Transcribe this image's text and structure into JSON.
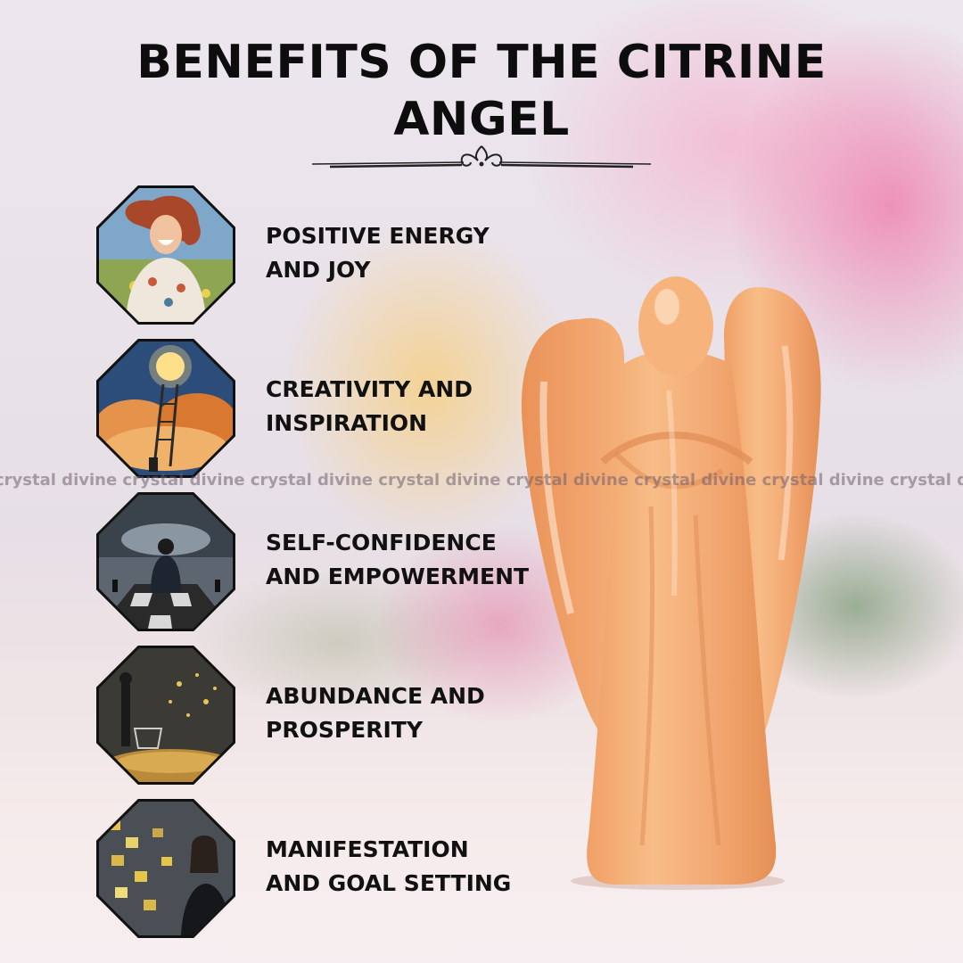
{
  "title": {
    "line1": "BENEFITS OF THE CITRINE",
    "line2": "ANGEL"
  },
  "benefits": [
    {
      "line1": "POSITIVE ENERGY",
      "line2": "AND JOY",
      "icon": "joyful-woman-icon"
    },
    {
      "line1": "CREATIVITY AND",
      "line2": "INSPIRATION",
      "icon": "lightbulb-ladder-icon"
    },
    {
      "line1": "SELF-CONFIDENCE",
      "line2": "AND EMPOWERMENT",
      "icon": "chess-man-icon"
    },
    {
      "line1": "ABUNDANCE AND",
      "line2": "PROSPERITY",
      "icon": "coins-cart-icon"
    },
    {
      "line1": "MANIFESTATION",
      "line2": "AND GOAL SETTING",
      "icon": "goal-board-icon"
    }
  ],
  "watermark": "crystal divine crystal divine crystal divine crystal divine crystal divine crystal divine crystal divine crystal divine",
  "colors": {
    "text": "#111111",
    "citrine": "#f3a86c",
    "pink_flowers": "#f07aa8"
  }
}
